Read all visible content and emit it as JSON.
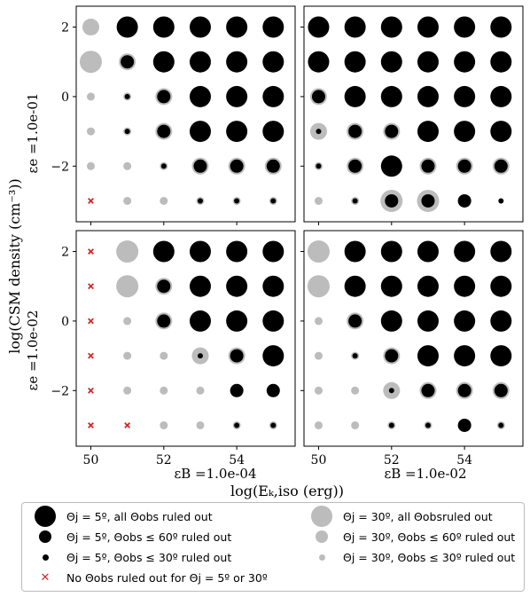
{
  "figure": {
    "ylabel_main": "log(CSM density (cm⁻³))",
    "xlabel_main": "log(Eₖ,iso (erg))",
    "row_labels": [
      "εe =1.0e-01",
      "εe =1.0e-02"
    ],
    "col_labels": [
      "εB =1.0e-04",
      "εB =1.0e-02"
    ]
  },
  "legend": {
    "items": [
      {
        "code": "b3",
        "label": "Θj = 5º, all Θobs ruled out"
      },
      {
        "code": "b2",
        "label": "Θj = 5º, Θobs ≤ 60º ruled out"
      },
      {
        "code": "b1",
        "label": "Θj = 5º, Θobs ≤ 30º ruled out"
      },
      {
        "code": "x",
        "label": "No Θobs ruled out for Θj = 5º or 30º"
      },
      {
        "code": "g3",
        "label": "Θj = 30º, all Θobsruled out"
      },
      {
        "code": "g2",
        "label": "Θj = 30º, Θobs ≤ 60º ruled out"
      },
      {
        "code": "g1",
        "label": "Θj = 30º, Θobs ≤ 30º ruled out"
      }
    ]
  },
  "chart_data": {
    "type": "scatter",
    "x_ticks": [
      "50",
      "52",
      "54"
    ],
    "y_ticks": [
      "2",
      "0",
      "−2"
    ],
    "xlim": [
      49.6,
      55.6
    ],
    "ylim": [
      -3.6,
      2.6
    ],
    "log_E_values": [
      50,
      51,
      52,
      53,
      54,
      55
    ],
    "log_n_values": [
      2,
      1,
      0,
      -1,
      -2,
      -3
    ],
    "level_meaning": {
      "b": "black, Theta_j = 5 deg: 3 = all Theta_obs ruled out, 2 = Theta_obs <= 60 ruled out, 1 = Theta_obs <= 30 ruled out",
      "g": "grey, Theta_j = 30 deg: 3 = all, 2 = <= 60, 1 = <= 30",
      "x": "no Theta_obs ruled out"
    },
    "panels": [
      {
        "row": 0,
        "col": 0,
        "epsilon_e": "1.0e-01",
        "epsilon_B": "1.0e-04",
        "grid": [
          [
            "g2",
            "b3",
            "b3",
            "b3",
            "b3",
            "b3"
          ],
          [
            "g3",
            "g2b2",
            "b3",
            "b3",
            "b3",
            "b3"
          ],
          [
            "g1",
            "g1b1",
            "g2b2",
            "b3",
            "b3",
            "b3"
          ],
          [
            "g1",
            "g1b1",
            "g2b2",
            "g2b3",
            "b3",
            "b3"
          ],
          [
            "g1",
            "g1",
            "g1b1",
            "g2b2",
            "g2b2",
            "g2b2"
          ],
          [
            "x",
            "g1",
            "g1",
            "g1b1",
            "g1b1",
            "g1b1"
          ]
        ]
      },
      {
        "row": 0,
        "col": 1,
        "epsilon_e": "1.0e-01",
        "epsilon_B": "1.0e-02",
        "grid": [
          [
            "b3",
            "b3",
            "b3",
            "b3",
            "b3",
            "b3"
          ],
          [
            "b3",
            "b3",
            "b3",
            "b3",
            "b3",
            "b3"
          ],
          [
            "g2b2",
            "b3",
            "b3",
            "b3",
            "b3",
            "b3"
          ],
          [
            "g2b1",
            "g2b2",
            "g2b2",
            "b3",
            "b3",
            "b3"
          ],
          [
            "g1b1",
            "g2b2",
            "b3",
            "g2b2",
            "g2b2",
            "g2b2"
          ],
          [
            "g1",
            "g1b1",
            "g3b2",
            "g3b2",
            "b2",
            "b1"
          ]
        ]
      },
      {
        "row": 1,
        "col": 0,
        "epsilon_e": "1.0e-02",
        "epsilon_B": "1.0e-04",
        "grid": [
          [
            "x",
            "g3",
            "b3",
            "b3",
            "b3",
            "b3"
          ],
          [
            "x",
            "g3",
            "g2b2",
            "b3",
            "b3",
            "b3"
          ],
          [
            "x",
            "g1",
            "g2b2",
            "g2b3",
            "b3",
            "b3"
          ],
          [
            "x",
            "g1",
            "g1",
            "g2b1",
            "g2b2",
            "g2b3"
          ],
          [
            "x",
            "g1",
            "g1",
            "g1",
            "b2",
            "b2"
          ],
          [
            "x",
            "x",
            "g1",
            "g1",
            "g1b1",
            "g1b1"
          ]
        ]
      },
      {
        "row": 1,
        "col": 1,
        "epsilon_e": "1.0e-02",
        "epsilon_B": "1.0e-02",
        "grid": [
          [
            "g3",
            "b3",
            "b3",
            "b3",
            "b3",
            "b3"
          ],
          [
            "g3",
            "b3",
            "b3",
            "b3",
            "b3",
            "b3"
          ],
          [
            "g1",
            "g2b2",
            "b3",
            "b3",
            "b3",
            "b3"
          ],
          [
            "g1",
            "g1b1",
            "g2b2",
            "b3",
            "b3",
            "b3"
          ],
          [
            "g1",
            "g1",
            "g2b1",
            "g2b2",
            "g2b2",
            "g2b2"
          ],
          [
            "g1",
            "g1",
            "g1b1",
            "g1b1",
            "b2",
            "g1b1"
          ]
        ]
      }
    ],
    "colors": {
      "black": "#000000",
      "grey": "#bcbcbc",
      "red": "#d62728"
    }
  }
}
